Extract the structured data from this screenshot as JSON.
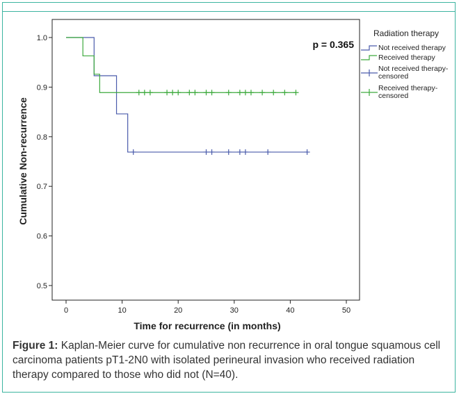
{
  "chart_data": {
    "type": "line",
    "subtype": "kaplan-meier step",
    "xlabel": "Time for recurrence (in months)",
    "ylabel": "Cumulative Non-recurrence",
    "xlim": [
      0,
      50
    ],
    "ylim": [
      0.5,
      1.0
    ],
    "xticks": [
      "0",
      "10",
      "20",
      "30",
      "40",
      "50"
    ],
    "yticks": [
      "0.5",
      "0.6",
      "0.7",
      "0.8",
      "0.9",
      "1.0"
    ],
    "annotation": "p = 0.365",
    "grid": false,
    "legend_position": "right",
    "legend_title": "Radiation therapy",
    "legend": [
      {
        "label": "Not received therapy",
        "kind": "line",
        "color": "#4a5bab"
      },
      {
        "label": "Received therapy",
        "kind": "line",
        "color": "#3daa3d"
      },
      {
        "label": "Not received therapy-censored",
        "kind": "censor",
        "color": "#4a5bab"
      },
      {
        "label": "Received therapy-censored",
        "kind": "censor",
        "color": "#3daa3d"
      }
    ],
    "series": [
      {
        "name": "Not received therapy",
        "color": "#4a5bab",
        "steps": [
          [
            0,
            1.0
          ],
          [
            5,
            0.923
          ],
          [
            9,
            0.846
          ],
          [
            11,
            0.769
          ],
          [
            43,
            0.769
          ]
        ],
        "censored": [
          [
            12,
            0.769
          ],
          [
            25,
            0.769
          ],
          [
            26,
            0.769
          ],
          [
            29,
            0.769
          ],
          [
            31,
            0.769
          ],
          [
            32,
            0.769
          ],
          [
            36,
            0.769
          ],
          [
            43,
            0.769
          ]
        ]
      },
      {
        "name": "Received therapy",
        "color": "#3daa3d",
        "steps": [
          [
            0,
            1.0
          ],
          [
            3,
            0.963
          ],
          [
            5,
            0.926
          ],
          [
            6,
            0.889
          ],
          [
            41,
            0.889
          ]
        ],
        "censored": [
          [
            13,
            0.889
          ],
          [
            14,
            0.889
          ],
          [
            15,
            0.889
          ],
          [
            18,
            0.889
          ],
          [
            19,
            0.889
          ],
          [
            20,
            0.889
          ],
          [
            22,
            0.889
          ],
          [
            23,
            0.889
          ],
          [
            25,
            0.889
          ],
          [
            26,
            0.889
          ],
          [
            29,
            0.889
          ],
          [
            31,
            0.889
          ],
          [
            32,
            0.889
          ],
          [
            33,
            0.889
          ],
          [
            35,
            0.889
          ],
          [
            37,
            0.889
          ],
          [
            39,
            0.889
          ],
          [
            41,
            0.889
          ]
        ]
      }
    ]
  },
  "caption": {
    "label": "Figure 1:",
    "text": " Kaplan-Meier curve for cumulative non recurrence in oral tongue squamous cell carcinoma patients  pT1-2N0 with isolated perineural invasion who received radiation therapy compared to those who did not (N=40)."
  }
}
